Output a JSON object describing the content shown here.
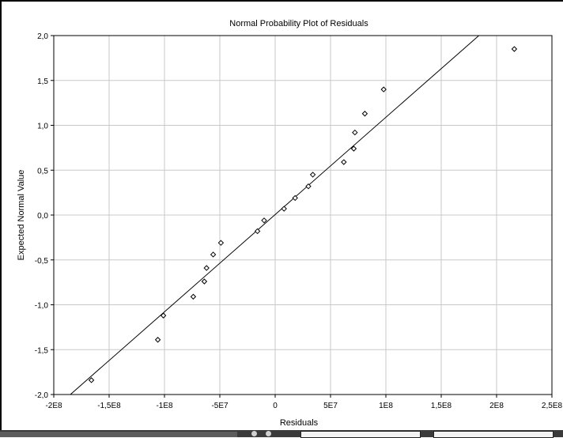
{
  "colors": {
    "background": "#ffffff",
    "frame": "#000000",
    "grid": "#c8c8c8",
    "fit_line": "#000000",
    "marker": "#000000",
    "taskbar": "#3a3a3a"
  },
  "chart_data": {
    "type": "scatter",
    "title": "Normal Probability Plot of Residuals",
    "xlabel": "Residuals",
    "ylabel": "Expected Normal Value",
    "xlim": [
      -200000000,
      250000000
    ],
    "ylim": [
      -2.0,
      2.0
    ],
    "grid": true,
    "x_ticks": [
      {
        "value": -200000000,
        "label": "-2E8"
      },
      {
        "value": -150000000,
        "label": "-1,5E8"
      },
      {
        "value": -100000000,
        "label": "-1E8"
      },
      {
        "value": -50000000,
        "label": "-5E7"
      },
      {
        "value": 0,
        "label": "0"
      },
      {
        "value": 50000000,
        "label": "5E7"
      },
      {
        "value": 100000000,
        "label": "1E8"
      },
      {
        "value": 150000000,
        "label": "1,5E8"
      },
      {
        "value": 200000000,
        "label": "2E8"
      },
      {
        "value": 250000000,
        "label": "2,5E8"
      }
    ],
    "y_ticks": [
      {
        "value": 2.0,
        "label": "2,0"
      },
      {
        "value": 1.5,
        "label": "1,5"
      },
      {
        "value": 1.0,
        "label": "1,0"
      },
      {
        "value": 0.5,
        "label": "0,5"
      },
      {
        "value": 0.0,
        "label": "0,0"
      },
      {
        "value": -0.5,
        "label": "-0,5"
      },
      {
        "value": -1.0,
        "label": "-1,0"
      },
      {
        "value": -1.5,
        "label": "-1,5"
      },
      {
        "value": -2.0,
        "label": "-2,0"
      }
    ],
    "marker": "diamond-open",
    "points": [
      {
        "x": -166000000,
        "y": -1.84
      },
      {
        "x": -106000000,
        "y": -1.39
      },
      {
        "x": -101000000,
        "y": -1.12
      },
      {
        "x": -74000000,
        "y": -0.91
      },
      {
        "x": -64000000,
        "y": -0.74
      },
      {
        "x": -62000000,
        "y": -0.59
      },
      {
        "x": -56000000,
        "y": -0.44
      },
      {
        "x": -49000000,
        "y": -0.31
      },
      {
        "x": -16000000,
        "y": -0.18
      },
      {
        "x": -10000000,
        "y": -0.06
      },
      {
        "x": 8000000,
        "y": 0.07
      },
      {
        "x": 18000000,
        "y": 0.19
      },
      {
        "x": 30000000,
        "y": 0.32
      },
      {
        "x": 34000000,
        "y": 0.45
      },
      {
        "x": 62000000,
        "y": 0.59
      },
      {
        "x": 71000000,
        "y": 0.74
      },
      {
        "x": 72000000,
        "y": 0.92
      },
      {
        "x": 81000000,
        "y": 1.13
      },
      {
        "x": 98000000,
        "y": 1.4
      },
      {
        "x": 216000000,
        "y": 1.85
      }
    ],
    "fit_line": {
      "x1": -185000000,
      "y1": -2.0,
      "x2": 184000000,
      "y2": 2.0
    }
  }
}
